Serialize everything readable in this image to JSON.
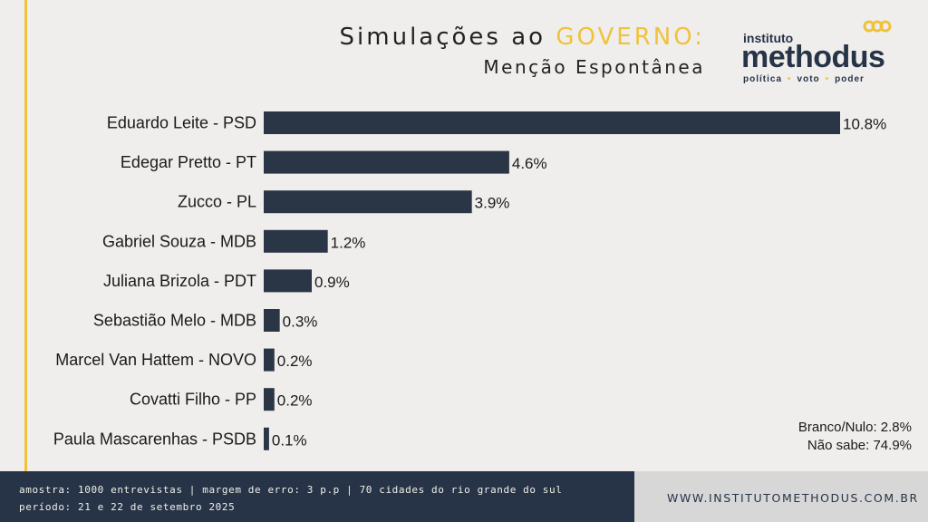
{
  "header": {
    "title_part1": "Simulações ao ",
    "title_highlight": "GOVERNO:",
    "subtitle": "Menção Espontânea"
  },
  "logo": {
    "small": "instituto",
    "big": "methodus",
    "tag1": "política",
    "tag2": "voto",
    "tag3": "poder",
    "icon": "infinity-link-icon"
  },
  "chart_data": {
    "type": "bar",
    "orientation": "horizontal",
    "categories": [
      "Eduardo Leite - PSD",
      "Edegar Pretto - PT",
      "Zucco - PL",
      "Gabriel Souza - MDB",
      "Juliana Brizola - PDT",
      "Sebastião Melo - MDB",
      "Marcel Van Hattem - NOVO",
      "Covatti Filho - PP",
      "Paula Mascarenhas - PSDB"
    ],
    "values": [
      10.8,
      4.6,
      3.9,
      1.2,
      0.9,
      0.3,
      0.2,
      0.2,
      0.1
    ],
    "value_labels": [
      "10.8%",
      "4.6%",
      "3.9%",
      "1.2%",
      "0.9%",
      "0.3%",
      "0.2%",
      "0.2%",
      "0.1%"
    ],
    "xlim": [
      0,
      10.8
    ],
    "grid": false,
    "bar_color": "#2a3545"
  },
  "extras": {
    "blank_null": "Branco/Nulo: 2.8%",
    "dont_know": "Não sabe: 74.9%"
  },
  "footer": {
    "line1": "amostra: 1000 entrevistas | margem de erro: 3 p.p | 70 cidades do rio grande do sul",
    "line2": "período: 21 e 22 de setembro 2025",
    "website": "WWW.INSTITUTOMETHODUS.COM.BR"
  },
  "colors": {
    "accent": "#f0c23b",
    "navy": "#273447",
    "background": "#efeeec"
  }
}
